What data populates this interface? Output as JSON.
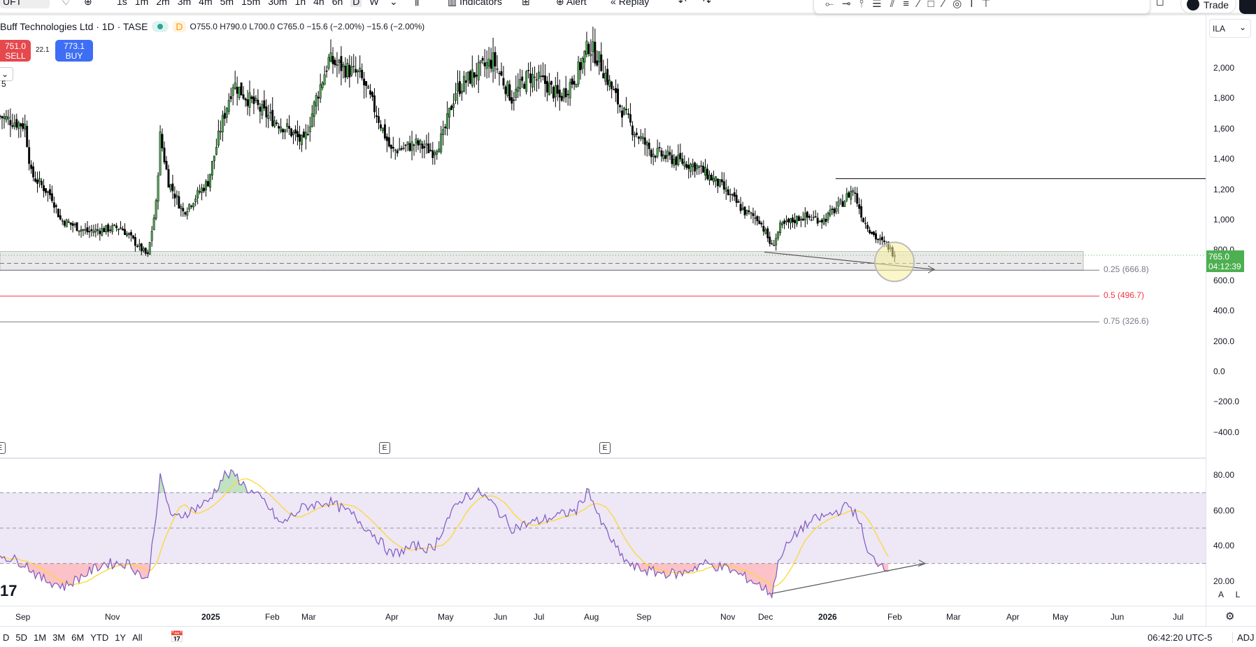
{
  "toolbar": {
    "symbol": "UFT",
    "intervals": [
      "1s",
      "1m",
      "2m",
      "3m",
      "4m",
      "5m",
      "15m",
      "30m",
      "1h",
      "4h",
      "6h",
      "D",
      "W"
    ],
    "indicators": "Indicators",
    "alert": "Alert",
    "replay": "Replay",
    "trade": "Trade"
  },
  "legend": {
    "title": "Buff Technologies Ltd · 1D · TASE",
    "interval_badge": "D",
    "ohlc": "O755.0 H790.0 L700.0 C765.0 −15.6 (−2.00%) −15.6 (−2.00%)"
  },
  "trade_widget": {
    "sell_price": "751.0",
    "sell_label": "SELL",
    "spread": "22.1",
    "buy_price": "773.1",
    "buy_label": "BUY"
  },
  "collapse_label": "5",
  "currency": "ILA",
  "price_axis": [
    "2,000",
    "1,800",
    "1,600",
    "1,400",
    "1,200",
    "1,000",
    "800.0",
    "600.0",
    "400.0",
    "200.0",
    "0.0",
    "−200.0",
    "−400.0"
  ],
  "last_price": {
    "value": "765.0",
    "countdown": "04:12:39"
  },
  "fib": [
    {
      "label": "0.25 (666.8)",
      "value": 666.8,
      "color": "#787b86"
    },
    {
      "label": "0.5 (496.7)",
      "value": 496.7,
      "color": "#f23645"
    },
    {
      "label": "0.75 (326.6)",
      "value": 326.6,
      "color": "#787b86"
    }
  ],
  "earnings_marker": "E",
  "rsi_axis": [
    "80.00",
    "60.00",
    "40.00",
    "20.00"
  ],
  "scale_buttons": {
    "auto": "A",
    "log": "L"
  },
  "time_axis": [
    "Sep",
    "Nov",
    "2025",
    "Feb",
    "Mar",
    "Apr",
    "May",
    "Jun",
    "Jul",
    "Aug",
    "Sep",
    "Nov",
    "Dec",
    "2026",
    "Feb",
    "Mar",
    "Apr",
    "May",
    "Jun",
    "Jul"
  ],
  "ranges": [
    "D",
    "5D",
    "1M",
    "3M",
    "6M",
    "YTD",
    "1Y",
    "All"
  ],
  "clock": "06:42:20 UTC-5",
  "adj": "ADJ",
  "colors": {
    "up": "#4caf50",
    "down": "#000000",
    "rsi": "#7e57c2",
    "rsi_ma": "#fdd835",
    "band": "#ede7f6"
  },
  "chart_data": {
    "type": "candlestick",
    "closes_keypoints": [
      [
        0,
        1680
      ],
      [
        12,
        1620
      ],
      [
        15,
        1300
      ],
      [
        25,
        1150
      ],
      [
        29,
        1000
      ],
      [
        42,
        920
      ],
      [
        58,
        950
      ],
      [
        71,
        760
      ],
      [
        75,
        1100
      ],
      [
        77,
        1550
      ],
      [
        81,
        1250
      ],
      [
        88,
        1050
      ],
      [
        100,
        1250
      ],
      [
        106,
        1600
      ],
      [
        112,
        1900
      ],
      [
        119,
        1800
      ],
      [
        127,
        1700
      ],
      [
        138,
        1600
      ],
      [
        146,
        1500
      ],
      [
        152,
        1800
      ],
      [
        158,
        2050
      ],
      [
        165,
        2000
      ],
      [
        173,
        1950
      ],
      [
        181,
        1700
      ],
      [
        188,
        1450
      ],
      [
        200,
        1500
      ],
      [
        208,
        1450
      ],
      [
        213,
        1550
      ],
      [
        219,
        1850
      ],
      [
        227,
        1950
      ],
      [
        237,
        2050
      ],
      [
        246,
        1800
      ],
      [
        254,
        1950
      ],
      [
        262,
        1900
      ],
      [
        269,
        1800
      ],
      [
        277,
        1950
      ],
      [
        283,
        2150
      ],
      [
        288,
        2050
      ],
      [
        296,
        1800
      ],
      [
        304,
        1600
      ],
      [
        313,
        1450
      ],
      [
        323,
        1400
      ],
      [
        335,
        1350
      ],
      [
        346,
        1230
      ],
      [
        358,
        1050
      ],
      [
        365,
        1000
      ],
      [
        371,
        820
      ],
      [
        375,
        950
      ],
      [
        385,
        1020
      ],
      [
        396,
        1000
      ],
      [
        404,
        1100
      ],
      [
        410,
        1200
      ],
      [
        415,
        1000
      ],
      [
        421,
        880
      ],
      [
        427,
        820
      ],
      [
        430,
        765
      ]
    ],
    "resistance_line": 1270,
    "rsi_keypoints": [
      [
        0,
        35
      ],
      [
        12,
        30
      ],
      [
        19,
        22
      ],
      [
        31,
        17
      ],
      [
        38,
        22
      ],
      [
        50,
        30
      ],
      [
        62,
        30
      ],
      [
        71,
        20
      ],
      [
        77,
        78
      ],
      [
        83,
        55
      ],
      [
        92,
        60
      ],
      [
        100,
        65
      ],
      [
        108,
        80
      ],
      [
        113,
        80
      ],
      [
        119,
        72
      ],
      [
        127,
        65
      ],
      [
        135,
        52
      ],
      [
        146,
        62
      ],
      [
        158,
        65
      ],
      [
        169,
        58
      ],
      [
        181,
        45
      ],
      [
        188,
        35
      ],
      [
        200,
        40
      ],
      [
        208,
        38
      ],
      [
        215,
        55
      ],
      [
        223,
        68
      ],
      [
        231,
        70
      ],
      [
        238,
        62
      ],
      [
        246,
        50
      ],
      [
        262,
        55
      ],
      [
        277,
        60
      ],
      [
        283,
        72
      ],
      [
        288,
        55
      ],
      [
        298,
        35
      ],
      [
        304,
        28
      ],
      [
        315,
        25
      ],
      [
        327,
        24
      ],
      [
        338,
        30
      ],
      [
        350,
        27
      ],
      [
        362,
        20
      ],
      [
        371,
        13
      ],
      [
        375,
        35
      ],
      [
        385,
        50
      ],
      [
        392,
        55
      ],
      [
        400,
        58
      ],
      [
        408,
        63
      ],
      [
        413,
        55
      ],
      [
        417,
        35
      ],
      [
        423,
        30
      ],
      [
        427,
        28
      ]
    ],
    "rsi_levels": [
      70,
      50,
      30
    ],
    "ylim": [
      -400,
      2100
    ]
  }
}
